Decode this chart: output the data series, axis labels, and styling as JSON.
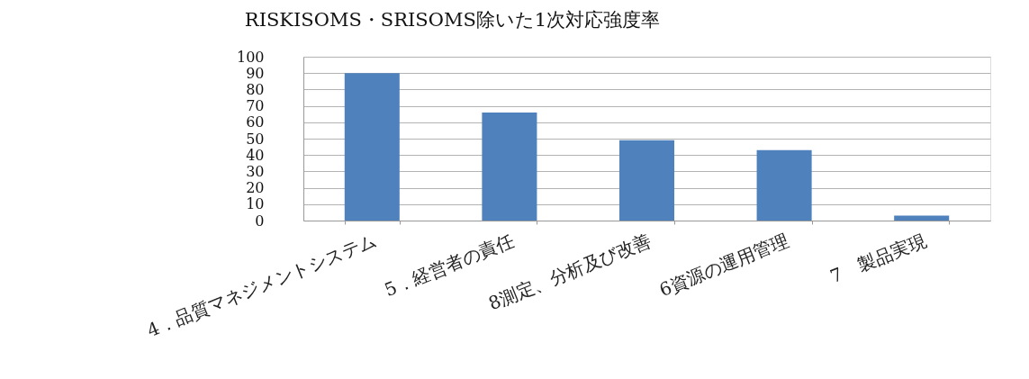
{
  "chart_data": {
    "type": "bar",
    "title": "RISKISOMS・SRISOMS除いた1次対応強度率",
    "categories": [
      "4．品質マネジメントシステム",
      "5．経営者の責任",
      "8測定、分析及び改善",
      "6資源の運用管理",
      "7　製品実現"
    ],
    "values": [
      90,
      66,
      49,
      43,
      3
    ],
    "color": "#4f81bd",
    "ylim": [
      0,
      100
    ],
    "yticks": [
      0,
      10,
      20,
      30,
      40,
      50,
      60,
      70,
      80,
      90,
      100
    ],
    "grid": "y"
  }
}
